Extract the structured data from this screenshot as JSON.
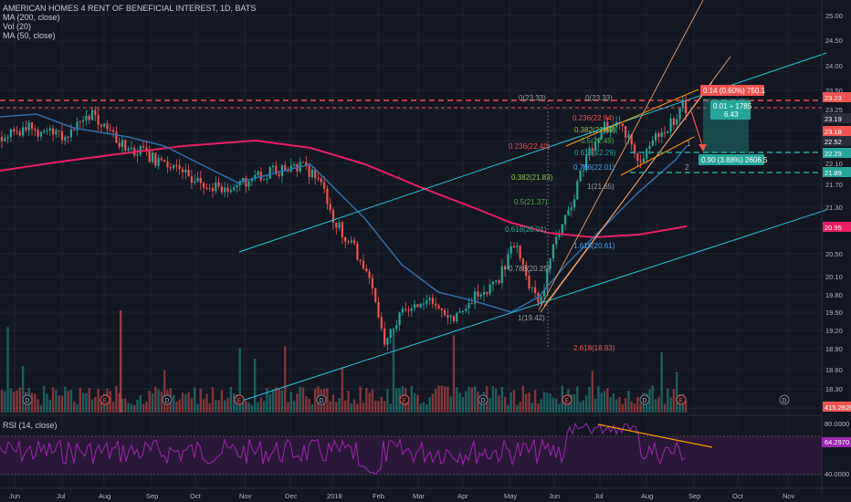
{
  "header": {
    "symbol_title": "AMERICAN HOMES 4 RENT OF BENEFICIAL INTEREST, 1D, BATS",
    "indicators": [
      "MA (200, close)",
      "Vol (20)",
      "MA (50, close)"
    ]
  },
  "rsi": {
    "label": "RSI (14, close)",
    "value": "64.2970",
    "levels": [
      "80.0000",
      "40.0000"
    ]
  },
  "price_axis": {
    "ticks": [
      "25.00",
      "24.50",
      "24.00",
      "23.50",
      "23.25",
      "22.80",
      "22.50",
      "22.10",
      "21.70",
      "21.30",
      "20.90",
      "20.50",
      "20.10",
      "19.80",
      "19.50",
      "19.20",
      "18.90",
      "18.60",
      "18.30",
      "17.90"
    ],
    "badges": [
      {
        "text": "23.23",
        "color": "#ef5350"
      },
      {
        "text": "23.19",
        "color": "#2a2e39"
      },
      {
        "text": "23.18",
        "color": "#ef5350"
      },
      {
        "text": "22.52",
        "color": "#2a2e39"
      },
      {
        "text": "22.29",
        "color": "#26a69a"
      },
      {
        "text": "21.89",
        "color": "#26a69a"
      },
      {
        "text": "20.95",
        "color": "#e91e63"
      },
      {
        "text": "415.282K",
        "color": "#ef5350"
      }
    ]
  },
  "time_axis": {
    "labels": [
      "Jun",
      "Jul",
      "Aug",
      "Sep",
      "Oct",
      "Nov",
      "Dec",
      "2018",
      "Feb",
      "Mar",
      "Apr",
      "May",
      "Jun",
      "Jul",
      "Aug",
      "Sep",
      "Oct",
      "Nov"
    ]
  },
  "fib_left": [
    {
      "text": "0.236(22.40)",
      "color": "#ef5350"
    },
    {
      "text": "0.382(21.83)",
      "color": "#8bc34a"
    },
    {
      "text": "0.5(21.37)",
      "color": "#4caf50"
    },
    {
      "text": "0.618(20.91)",
      "color": "#26a69a"
    },
    {
      "text": "0.786(20.25)",
      "color": "#9e9e9e"
    },
    {
      "text": "1(19.42)",
      "color": "#9e9e9e"
    },
    {
      "text": "1.618(20.61)",
      "color": "#42a5f5"
    },
    {
      "text": "2.618(18.93)",
      "color": "#ef5350"
    }
  ],
  "fib_right": [
    {
      "text": "0(23.33)",
      "color": "#9e9e9e"
    },
    {
      "text": "0(23.33)",
      "color": "#9e9e9e"
    },
    {
      "text": "0.236(22.94)",
      "color": "#ef5350"
    },
    {
      "text": "0.382(22.69)",
      "color": "#8bc34a"
    },
    {
      "text": "0.5(22.49)",
      "color": "#4caf50"
    },
    {
      "text": "0.618(22.29)",
      "color": "#26a69a"
    },
    {
      "text": "0.786(22.01)",
      "color": "#42a5f5"
    },
    {
      "text": "1(21.65)",
      "color": "#9e9e9e"
    }
  ],
  "wave_labels": [
    "1",
    "2"
  ],
  "events": [
    "D",
    "E",
    "D",
    "E",
    "D",
    "E",
    "D",
    "E",
    "D",
    "E",
    "D",
    "E",
    "D",
    "E"
  ],
  "position": {
    "target_label": "0.14 (0.60%) 750.1",
    "stop_label": "0.90 (3.88%) 2606.5",
    "ratio_line1": "0.01 ÷ 1785",
    "ratio_line2": "6.43"
  },
  "colors": {
    "background": "#131722",
    "grid": "#1f2331",
    "up": "#26a69a",
    "down": "#ef5350",
    "ma200": "#e91e63",
    "ma50": "#2f6fa8",
    "rsi_line": "#9c27b0",
    "rsi_band": "#2a1838"
  }
}
